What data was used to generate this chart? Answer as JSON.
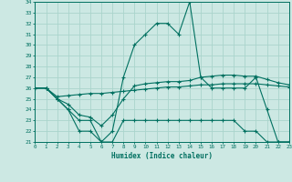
{
  "xlabel": "Humidex (Indice chaleur)",
  "background_color": "#cce8e3",
  "grid_color": "#aad4cc",
  "line_color": "#007060",
  "x_values": [
    0,
    1,
    2,
    3,
    4,
    5,
    6,
    7,
    8,
    9,
    10,
    11,
    12,
    13,
    14,
    15,
    16,
    17,
    18,
    19,
    20,
    21,
    22,
    23
  ],
  "curve1": [
    26,
    26,
    25,
    24,
    22,
    22,
    21,
    22,
    27,
    30,
    31,
    32,
    32,
    31,
    34,
    27,
    26,
    26,
    26,
    26,
    27,
    24,
    21,
    21
  ],
  "curve2": [
    26,
    26,
    25.2,
    25.3,
    25.4,
    25.5,
    25.5,
    25.6,
    25.7,
    25.8,
    25.9,
    26.0,
    26.1,
    26.1,
    26.2,
    26.3,
    26.3,
    26.4,
    26.4,
    26.4,
    26.4,
    26.3,
    26.2,
    26.1
  ],
  "curve3": [
    26,
    26,
    25,
    24.5,
    23.5,
    23.3,
    22.5,
    23.5,
    25,
    26.2,
    26.4,
    26.5,
    26.6,
    26.6,
    26.7,
    27.0,
    27.1,
    27.2,
    27.2,
    27.1,
    27.1,
    26.8,
    26.5,
    26.3
  ],
  "curve4": [
    26,
    26,
    25,
    24,
    23,
    23,
    21,
    21,
    23,
    23,
    23,
    23,
    23,
    23,
    23,
    23,
    23,
    23,
    23,
    22,
    22,
    21,
    21,
    21
  ],
  "ylim": [
    21,
    34
  ],
  "xlim": [
    0,
    23
  ],
  "yticks": [
    21,
    22,
    23,
    24,
    25,
    26,
    27,
    28,
    29,
    30,
    31,
    32,
    33,
    34
  ],
  "xticks": [
    0,
    1,
    2,
    3,
    4,
    5,
    6,
    7,
    8,
    9,
    10,
    11,
    12,
    13,
    14,
    15,
    16,
    17,
    18,
    19,
    20,
    21,
    22,
    23
  ]
}
